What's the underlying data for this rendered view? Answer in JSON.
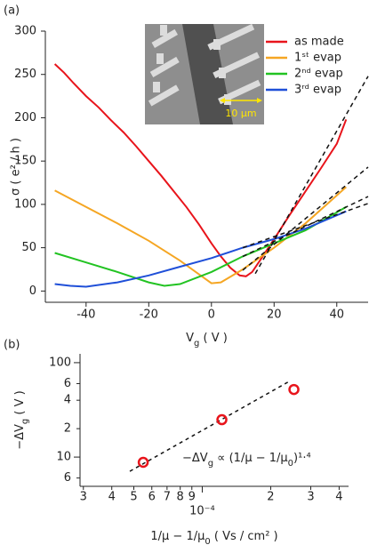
{
  "panels": [
    "(a)",
    "(b)"
  ],
  "inset_scale_label": "10 µm",
  "chart_data": [
    {
      "type": "line",
      "xlabel": [
        "V",
        "g",
        " ( V )"
      ],
      "ylabel": "σ ( e² / h )",
      "xlim": [
        -53,
        50
      ],
      "ylim": [
        -13,
        300
      ],
      "xticks": [
        -40,
        -20,
        0,
        20,
        40
      ],
      "yticks": [
        0,
        50,
        100,
        150,
        200,
        250,
        300
      ],
      "legend": "upper right",
      "series": [
        {
          "name": "as made",
          "color": "#e8141b",
          "x": [
            -50,
            -47,
            -44,
            -40,
            -36,
            -32,
            -28,
            -24,
            -20,
            -16,
            -12,
            -8,
            -4,
            0,
            3,
            6,
            9,
            11,
            13,
            16,
            20,
            25,
            30,
            35,
            40,
            43
          ],
          "values": [
            262,
            252,
            240,
            225,
            212,
            197,
            183,
            167,
            150,
            133,
            115,
            97,
            77,
            55,
            40,
            27,
            18,
            17,
            22,
            38,
            60,
            88,
            115,
            142,
            170,
            198
          ]
        },
        {
          "name": "1ˢᵗ evap",
          "color": "#f5a623",
          "x": [
            -50,
            -40,
            -30,
            -20,
            -10,
            -5,
            0,
            3,
            10,
            20,
            30,
            43
          ],
          "values": [
            116,
            97,
            78,
            58,
            35,
            22,
            9,
            10,
            25,
            50,
            78,
            120
          ]
        },
        {
          "name": "2ⁿᵈ evap",
          "color": "#22c322",
          "x": [
            -50,
            -40,
            -30,
            -20,
            -15,
            -10,
            0,
            10,
            20,
            30,
            43
          ],
          "values": [
            44,
            33,
            22,
            10,
            6,
            8,
            22,
            40,
            55,
            70,
            97
          ]
        },
        {
          "name": "3ʳᵈ evap",
          "color": "#1f4fd8",
          "x": [
            -50,
            -45,
            -40,
            -30,
            -20,
            -10,
            0,
            10,
            20,
            30,
            43
          ],
          "values": [
            8,
            6,
            5,
            10,
            18,
            28,
            38,
            50,
            60,
            72,
            92
          ]
        }
      ],
      "fits": [
        {
          "x": [
            14,
            50
          ],
          "values": [
            20,
            248
          ]
        },
        {
          "x": [
            10,
            50
          ],
          "values": [
            24,
            143
          ]
        },
        {
          "x": [
            10,
            50
          ],
          "values": [
            40,
            109
          ]
        },
        {
          "x": [
            10,
            50
          ],
          "values": [
            50,
            101
          ]
        }
      ]
    },
    {
      "type": "scatter",
      "xlabel": [
        "1/μ − 1/μ",
        "0",
        "  ( Vs / cm² )"
      ],
      "ylabel": [
        "−ΔV",
        "g",
        "  ( V )"
      ],
      "annotation": [
        "−ΔV",
        "g",
        " ∝ (1/μ − 1/μ",
        "0",
        ")¹·⁴"
      ],
      "xscale": "log",
      "yscale": "log",
      "xlim": [
        2.9e-05,
        0.00044
      ],
      "ylim": [
        4.9,
        124
      ],
      "xticks": [
        {
          "value": 3e-05,
          "label": "3"
        },
        {
          "value": 4e-05,
          "label": "4"
        },
        {
          "value": 5e-05,
          "label": "5"
        },
        {
          "value": 6e-05,
          "label": "6"
        },
        {
          "value": 7e-05,
          "label": "7"
        },
        {
          "value": 8e-05,
          "label": "8"
        },
        {
          "value": 9e-05,
          "label": "9"
        },
        {
          "value": 0.0001,
          "label": "10⁻⁴"
        },
        {
          "value": 0.0002,
          "label": "2"
        },
        {
          "value": 0.0003,
          "label": "3"
        },
        {
          "value": 0.0004,
          "label": "4"
        }
      ],
      "yticks": [
        10,
        {
          "value": 6,
          "label": "6"
        },
        {
          "value": 20,
          "label": "2"
        },
        {
          "value": 40,
          "label": "4"
        },
        {
          "value": 60,
          "label": "6"
        },
        100
      ],
      "color": "#e8141b",
      "x": [
        5.5e-05,
        0.000122,
        0.000253
      ],
      "values": [
        8.8,
        24.9,
        52
      ],
      "fit": {
        "x": [
          4.8e-05,
          0.000245
        ],
        "values": [
          7.07,
          64.7
        ]
      }
    }
  ]
}
